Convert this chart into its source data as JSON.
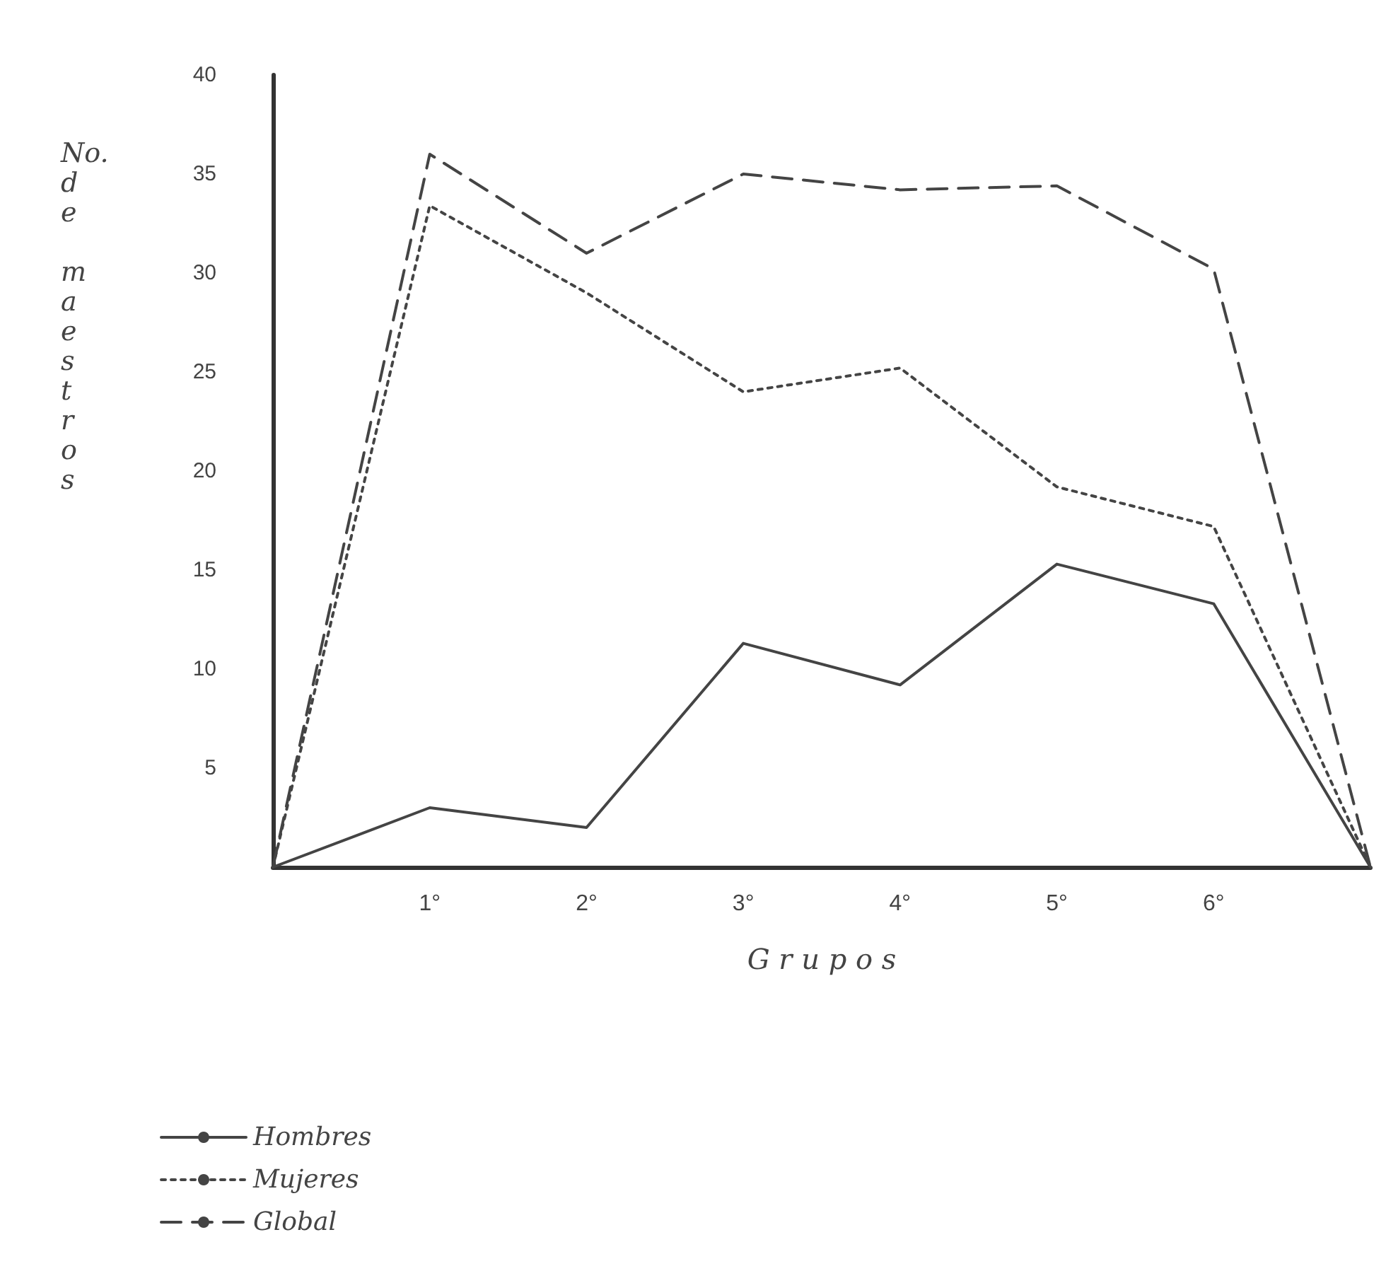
{
  "chart_data": {
    "type": "line",
    "xlabel": "G r u p o s",
    "ylabel": "No. de maestros",
    "categories": [
      null,
      "1°",
      "2°",
      "3°",
      "4°",
      "5°",
      "6°",
      null
    ],
    "series": [
      {
        "name": "Hombres",
        "color": "#444444",
        "line_style": "solid",
        "values": [
          0,
          3,
          2,
          11.3,
          9.2,
          15.3,
          13.3,
          0
        ]
      },
      {
        "name": "Mujeres",
        "color": "#444444",
        "line_style": "dotted",
        "values": [
          0,
          33.4,
          29,
          24,
          25.2,
          19.2,
          17.2,
          0
        ]
      },
      {
        "name": "Global",
        "color": "#444444",
        "line_style": "dashed",
        "values": [
          0,
          36,
          31,
          35,
          34.2,
          34.4,
          30.2,
          0
        ]
      }
    ],
    "ylim": [
      0,
      40
    ],
    "yticks": [
      {
        "value": 0,
        "label": null
      },
      5,
      10,
      15,
      20,
      25,
      30,
      35,
      40
    ],
    "grid": false,
    "legend": "bottom left",
    "marker": "none"
  }
}
